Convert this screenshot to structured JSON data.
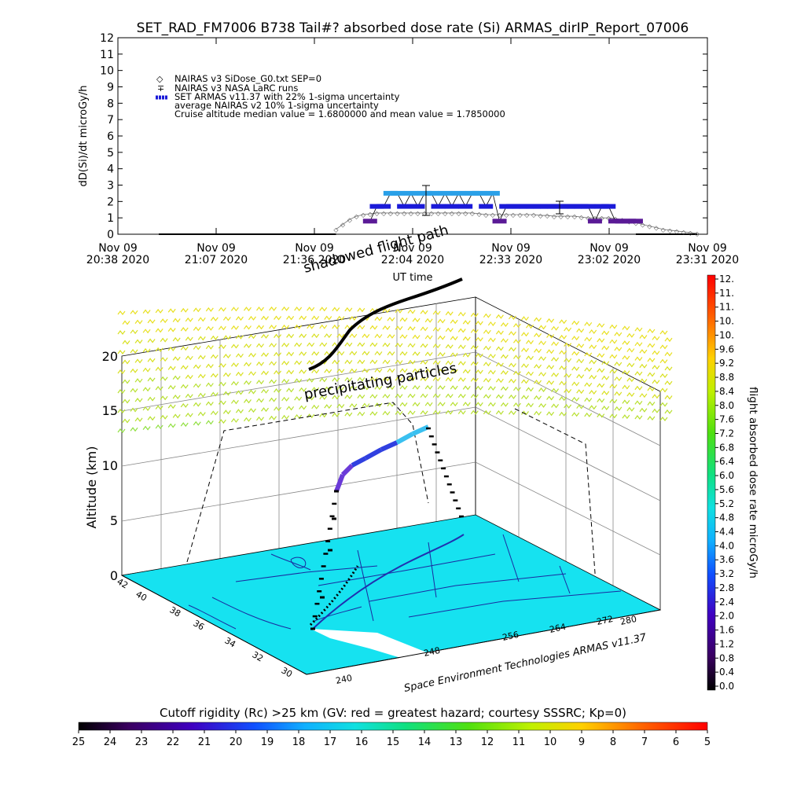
{
  "title": "SET_RAD_FM7006  B738 Tail#? absorbed dose rate (Si) ARMAS_dirIP_Report_07006",
  "top_plot": {
    "ylabel": "dD(Si)/dt microGy/h",
    "xlabel": "UT time",
    "legend": [
      "NAIRAS v3 SiDose_G0.txt SEP=0",
      "NAIRAS v3 NASA LaRC runs",
      "SET ARMAS v11.37 with 22% 1-sigma uncertainty",
      "average NAIRAS v2 10% 1-sigma uncertainty",
      "Cruise altitude median value = 1.6800000 and mean value = 1.7850000"
    ],
    "x_tick_dates": [
      "Nov 09",
      "Nov 09",
      "Nov 09",
      "Nov 09",
      "Nov 09",
      "Nov 09",
      "Nov 09"
    ],
    "x_tick_times": [
      "20:38 2020",
      "21:07 2020",
      "21:36 2020",
      "22:04 2020",
      "22:33 2020",
      "23:02 2020",
      "23:31 2020"
    ],
    "y_ticks": [
      "0",
      "1",
      "2",
      "3",
      "4",
      "5",
      "6",
      "7",
      "8",
      "9",
      "10",
      "11",
      "12"
    ]
  },
  "three_d": {
    "zlabel": "Altitude (km)",
    "z_ticks": [
      "0",
      "5",
      "10",
      "15",
      "20"
    ],
    "lat_ticks": [
      "42",
      "40",
      "38",
      "36",
      "34",
      "32",
      "30"
    ],
    "lon_ticks": [
      "240",
      "248",
      "256",
      "264",
      "272",
      "280"
    ],
    "annotation_particles": "precipitating particles",
    "annotation_shadow": "shadowed flight path",
    "credit": "Space Environment Technologies ARMAS v11.37"
  },
  "colorbar_right": {
    "label": "flight absorbed dose rate microGy/h",
    "ticks": [
      "12.",
      "11.",
      "11.",
      "10.",
      "10.",
      "9.6",
      "9.2",
      "8.8",
      "8.4",
      "8.0",
      "7.6",
      "7.2",
      "6.8",
      "6.4",
      "6.0",
      "5.6",
      "5.2",
      "4.8",
      "4.4",
      "4.0",
      "3.6",
      "3.2",
      "2.8",
      "2.4",
      "2.0",
      "1.6",
      "1.2",
      "0.8",
      "0.4",
      "0.0"
    ]
  },
  "colorbar_bottom": {
    "label": "Cutoff rigidity (Rc) >25 km (GV: red = greatest hazard; courtesy SSSRC; Kp=0)",
    "ticks": [
      "25",
      "24",
      "23",
      "22",
      "21",
      "20",
      "19",
      "18",
      "17",
      "16",
      "15",
      "14",
      "13",
      "12",
      "11",
      "10",
      "9",
      "8",
      "7",
      "6",
      "5"
    ]
  },
  "colors": {
    "armas_low": "#5a1a96",
    "armas_mid": "#1a1ad8",
    "armas_high": "#2aa0e8",
    "nairas": "#555555",
    "map_fill": "#16e2f0",
    "coast": "#1a2aa0"
  },
  "chart_data": [
    {
      "type": "scatter",
      "title": "SET_RAD_FM7006  B738 Tail#? absorbed dose rate (Si) ARMAS_dirIP_Report_07006",
      "xlabel": "UT time",
      "ylabel": "dD(Si)/dt microGy/h",
      "ylim": [
        0,
        12
      ],
      "xlim": [
        "2020-11-09 20:38",
        "2020-11-09 23:31"
      ],
      "legend_position": "top-left",
      "series": [
        {
          "name": "NAIRAS v3 SiDose_G0.txt SEP=0",
          "x": [
            "21:42",
            "21:44",
            "21:46",
            "21:48",
            "21:50",
            "21:52",
            "21:54",
            "21:56",
            "21:58",
            "22:00",
            "22:02",
            "22:04",
            "22:06",
            "22:08",
            "22:10",
            "22:12",
            "22:14",
            "22:16",
            "22:18",
            "22:20",
            "22:22",
            "22:24",
            "22:26",
            "22:28",
            "22:30",
            "22:32",
            "22:34",
            "22:36",
            "22:38",
            "22:40",
            "22:42",
            "22:44",
            "22:46",
            "22:48",
            "22:50",
            "22:52",
            "22:54",
            "22:56",
            "22:58",
            "23:00",
            "23:02",
            "23:04",
            "23:06",
            "23:08",
            "23:10",
            "23:12",
            "23:14",
            "23:16",
            "23:18",
            "23:20",
            "23:22",
            "23:24",
            "23:26",
            "23:28"
          ],
          "y": [
            0.3,
            0.6,
            0.9,
            1.1,
            1.2,
            1.25,
            1.3,
            1.3,
            1.3,
            1.3,
            1.3,
            1.3,
            1.3,
            1.3,
            1.3,
            1.3,
            1.3,
            1.3,
            1.3,
            1.3,
            1.3,
            1.25,
            1.2,
            1.2,
            1.2,
            1.2,
            1.2,
            1.2,
            1.2,
            1.2,
            1.15,
            1.15,
            1.1,
            1.1,
            1.1,
            1.1,
            1.05,
            1.0,
            1.0,
            1.0,
            1.0,
            0.95,
            0.9,
            0.8,
            0.7,
            0.6,
            0.5,
            0.4,
            0.3,
            0.25,
            0.2,
            0.15,
            0.1,
            0.05
          ]
        },
        {
          "name": "SET ARMAS v11.37 with 22% 1-sigma uncertainty",
          "x": [
            "21:52",
            "21:54",
            "21:56",
            "21:58",
            "22:00",
            "22:02",
            "22:04",
            "22:06",
            "22:08",
            "22:10",
            "22:12",
            "22:14",
            "22:16",
            "22:18",
            "22:20",
            "22:22",
            "22:24",
            "22:26",
            "22:28",
            "22:30",
            "22:32",
            "22:34",
            "22:36",
            "22:38",
            "22:40",
            "22:42",
            "22:44",
            "22:46",
            "22:48",
            "22:50",
            "22:52",
            "22:54",
            "22:56",
            "22:58",
            "23:00",
            "23:02",
            "23:04",
            "23:06",
            "23:08",
            "23:10"
          ],
          "y": [
            0.8,
            1.7,
            1.7,
            2.5,
            2.5,
            1.7,
            2.5,
            1.7,
            2.5,
            2.5,
            1.7,
            2.5,
            1.7,
            2.5,
            1.7,
            2.5,
            2.5,
            1.7,
            2.5,
            0.8,
            1.7,
            1.7,
            1.7,
            1.7,
            1.7,
            1.7,
            1.7,
            1.7,
            1.7,
            1.7,
            1.7,
            1.7,
            1.7,
            0.8,
            1.7,
            1.7,
            0.8,
            0.8,
            0.8,
            0.8
          ]
        }
      ]
    }
  ]
}
